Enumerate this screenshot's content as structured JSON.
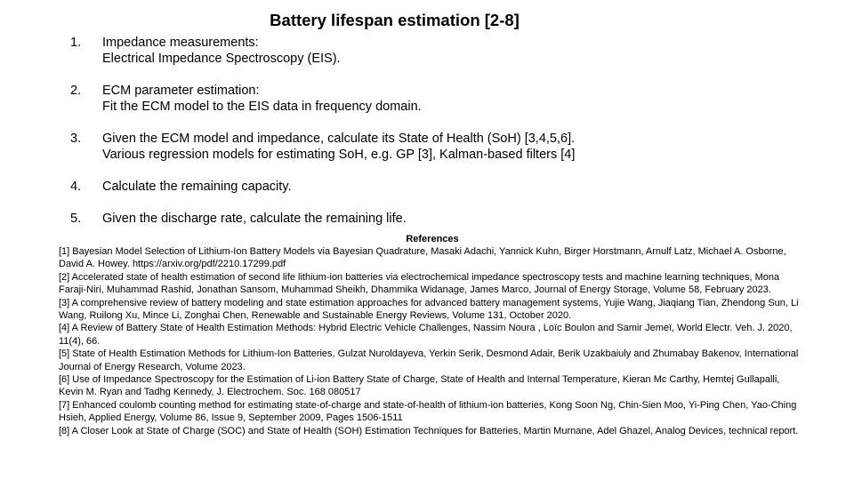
{
  "slide": {
    "title": "Battery lifespan estimation [2-8]",
    "steps": [
      {
        "number": "1.",
        "lines": [
          "Impedance measurements:",
          "Electrical Impedance Spectroscopy (EIS)."
        ]
      },
      {
        "number": "2.",
        "lines": [
          "ECM parameter estimation:",
          "Fit the ECM model to the EIS data in frequency domain."
        ]
      },
      {
        "number": "3.",
        "lines": [
          "Given the ECM model and impedance, calculate its State of Health (SoH) [3,4,5,6].",
          "Various regression models for estimating SoH, e.g. GP [3], Kalman-based filters [4]"
        ]
      },
      {
        "number": "4.",
        "lines": [
          "Calculate the remaining capacity."
        ]
      },
      {
        "number": "5.",
        "lines": [
          "Given the discharge rate, calculate the remaining life."
        ]
      }
    ],
    "references": {
      "heading": "References",
      "items": [
        "[1] Bayesian Model Selection of Lithium-Ion Battery Models via Bayesian Quadrature, Masaki Adachi, Yannick Kuhn, Birger Horstmann, Arnulf Latz, Michael A. Osborne, David A. Howey. https://arxiv.org/pdf/2210.17299.pdf",
        "[2] Accelerated state of health estimation of second life lithium-ion batteries via electrochemical impedance spectroscopy tests and machine learning techniques, Mona Faraji-Niri, Muhammad Rashid, Jonathan Sansom, Muhammad Sheikh, Dhammika Widanage, James Marco, Journal of Energy Storage, Volume 58, February 2023.",
        "[3] A comprehensive review of battery modeling and state estimation approaches for advanced battery management systems, Yujie Wang, Jiaqiang Tian, Zhendong Sun, Li Wang, Ruilong Xu, Mince Li, Zonghai Chen, Renewable and Sustainable Energy Reviews, Volume 131, October 2020.",
        "[4] A Review of Battery State of Health Estimation Methods: Hybrid Electric Vehicle Challenges, Nassim Noura , Loïc Boulon and Samir Jemeï, World Electr. Veh. J. 2020, 11(4), 66.",
        "[5] State of Health Estimation Methods for Lithium-Ion Batteries, Gulzat Nuroldayeva, Yerkin Serik, Desmond Adair, Berik Uzakbaiuly and Zhumabay Bakenov, International Journal of Energy Research, Volume 2023.",
        "[6] Use of Impedance Spectroscopy for the Estimation of Li-ion Battery State of Charge, State of Health and Internal Temperature, Kieran Mc Carthy, Hemtej Gullapalli, Kevin M. Ryan and Tadhg Kennedy, J. Electrochem. Soc. 168 080517",
        "[7] Enhanced coulomb counting method for estimating state-of-charge and state-of-health of lithium-ion batteries, Kong Soon Ng, Chin-Sien Moo, Yi-Ping Chen, Yao-Ching Hsieh, Applied Energy, Volume 86, Issue 9, September 2009, Pages 1506-1511",
        "[8] A Closer Look at State of Charge (SOC) and State of Health (SOH) Estimation Techniques for Batteries, Martin Murnane, Adel Ghazel, Analog Devices, technical report."
      ]
    }
  }
}
